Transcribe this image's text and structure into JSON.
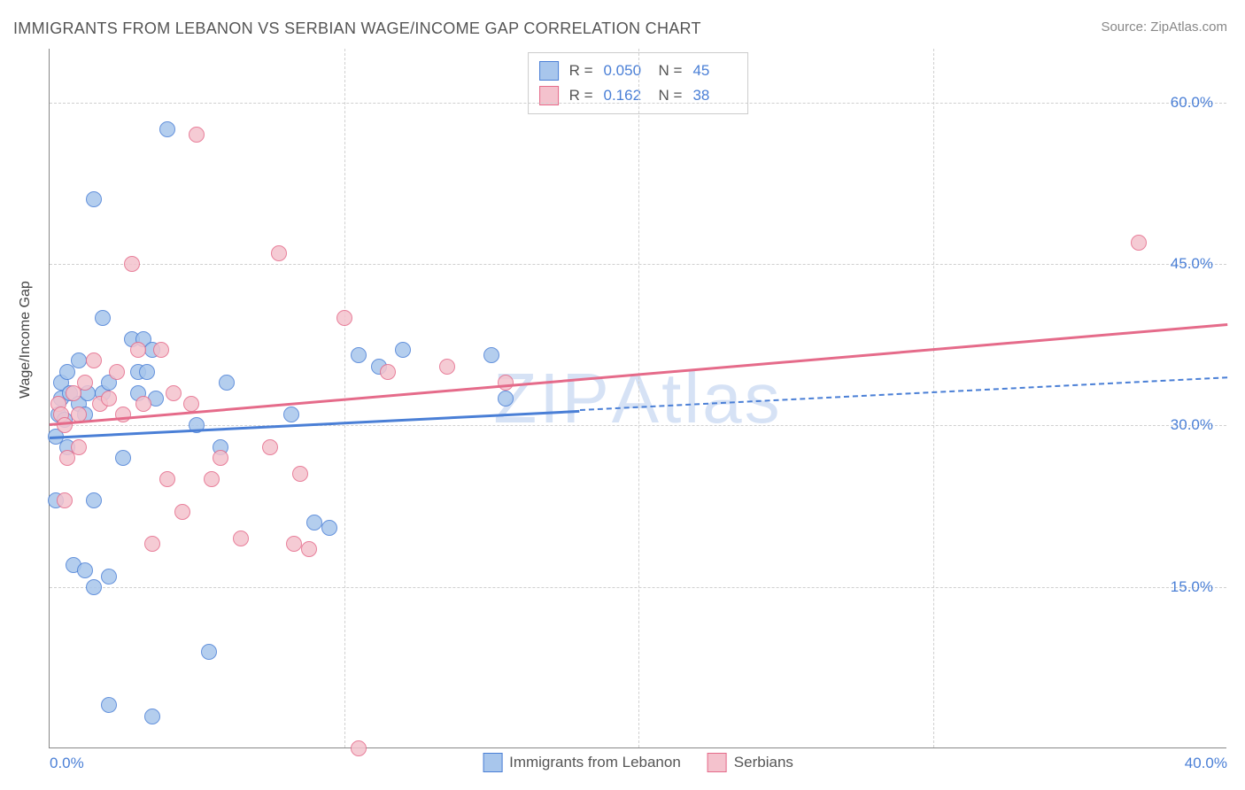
{
  "title": "IMMIGRANTS FROM LEBANON VS SERBIAN WAGE/INCOME GAP CORRELATION CHART",
  "source_label": "Source: ZipAtlas.com",
  "watermark_zip": "ZIP",
  "watermark_atlas": "Atlas",
  "chart": {
    "type": "scatter",
    "ylabel": "Wage/Income Gap",
    "xlim": [
      0,
      40
    ],
    "ylim": [
      0,
      65
    ],
    "ytick_values": [
      15,
      30,
      45,
      60
    ],
    "ytick_labels": [
      "15.0%",
      "30.0%",
      "45.0%",
      "60.0%"
    ],
    "xtick_values": [
      0,
      10,
      20,
      30,
      40
    ],
    "xtick_labels": [
      "0.0%",
      "",
      "",
      "",
      "40.0%"
    ],
    "background_color": "#ffffff",
    "grid_color": "#d0d0d0",
    "tick_label_color": "#4a7fd6",
    "axis_label_color": "#444444",
    "marker_size": 18,
    "series": [
      {
        "name": "Immigrants from Lebanon",
        "fill_color": "#a8c6ec",
        "stroke_color": "#4a7fd6",
        "r_value": "0.050",
        "n_value": "45",
        "regression": {
          "x1": 0,
          "y1": 29.0,
          "x2": 18,
          "y2": 31.3,
          "solid_until_x": 18,
          "dash_x2": 40,
          "dash_y2": 34.5
        },
        "points": [
          [
            0.2,
            23
          ],
          [
            0.2,
            29
          ],
          [
            0.3,
            31
          ],
          [
            0.4,
            32.5
          ],
          [
            0.5,
            30.5
          ],
          [
            0.4,
            34
          ],
          [
            0.6,
            35
          ],
          [
            0.6,
            28
          ],
          [
            0.7,
            33
          ],
          [
            1.0,
            36
          ],
          [
            1.0,
            32
          ],
          [
            1.2,
            31
          ],
          [
            1.3,
            33
          ],
          [
            1.5,
            23
          ],
          [
            1.8,
            40
          ],
          [
            1.8,
            33
          ],
          [
            2.0,
            34
          ],
          [
            2.0,
            16
          ],
          [
            2.5,
            27
          ],
          [
            2.8,
            38
          ],
          [
            3.0,
            35
          ],
          [
            3.0,
            33
          ],
          [
            3.2,
            38
          ],
          [
            3.3,
            35
          ],
          [
            3.5,
            37
          ],
          [
            3.6,
            32.5
          ],
          [
            1.5,
            51
          ],
          [
            4.0,
            57.5
          ],
          [
            5.0,
            30
          ],
          [
            5.4,
            9
          ],
          [
            5.8,
            28
          ],
          [
            1.5,
            15
          ],
          [
            2.0,
            4
          ],
          [
            3.5,
            3
          ],
          [
            0.8,
            17
          ],
          [
            1.2,
            16.5
          ],
          [
            9.0,
            21
          ],
          [
            9.5,
            20.5
          ],
          [
            8.2,
            31
          ],
          [
            10.5,
            36.5
          ],
          [
            11.2,
            35.5
          ],
          [
            15.0,
            36.5
          ],
          [
            15.5,
            32.5
          ],
          [
            12.0,
            37
          ],
          [
            6.0,
            34
          ]
        ]
      },
      {
        "name": "Serbians",
        "fill_color": "#f4c2cd",
        "stroke_color": "#e56b8a",
        "r_value": "0.162",
        "n_value": "38",
        "regression": {
          "x1": 0,
          "y1": 30.2,
          "x2": 40,
          "y2": 39.5,
          "solid_until_x": 40
        },
        "points": [
          [
            0.3,
            32
          ],
          [
            0.4,
            31
          ],
          [
            0.6,
            27
          ],
          [
            0.5,
            30
          ],
          [
            0.8,
            33
          ],
          [
            1.0,
            31
          ],
          [
            1.0,
            28
          ],
          [
            1.2,
            34
          ],
          [
            1.5,
            36
          ],
          [
            1.7,
            32
          ],
          [
            2.0,
            32.5
          ],
          [
            2.3,
            35
          ],
          [
            2.5,
            31
          ],
          [
            2.8,
            45
          ],
          [
            3.0,
            37
          ],
          [
            3.2,
            32
          ],
          [
            3.8,
            37
          ],
          [
            4.2,
            33
          ],
          [
            4.5,
            22
          ],
          [
            5.0,
            57
          ],
          [
            4.8,
            32
          ],
          [
            3.5,
            19
          ],
          [
            4.0,
            25
          ],
          [
            5.5,
            25
          ],
          [
            5.8,
            27
          ],
          [
            6.5,
            19.5
          ],
          [
            7.5,
            28
          ],
          [
            7.8,
            46
          ],
          [
            8.3,
            19
          ],
          [
            8.5,
            25.5
          ],
          [
            8.8,
            18.5
          ],
          [
            10.0,
            40
          ],
          [
            11.5,
            35
          ],
          [
            13.5,
            35.5
          ],
          [
            15.5,
            34
          ],
          [
            10.5,
            0
          ],
          [
            0.5,
            23
          ],
          [
            37.0,
            47
          ]
        ]
      }
    ]
  },
  "legend_r_label": "R =",
  "legend_n_label": "N ="
}
